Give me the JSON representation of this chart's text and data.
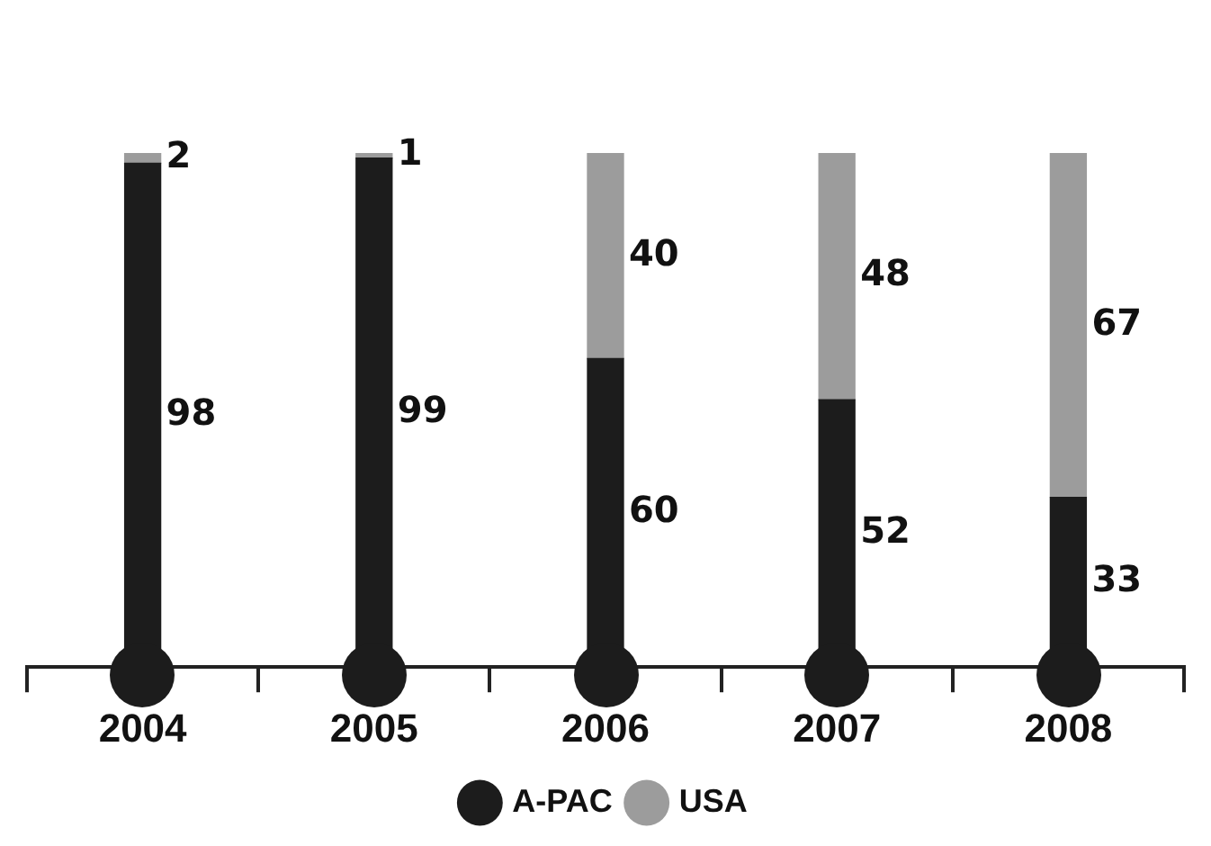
{
  "chart_data": {
    "type": "bar",
    "stacked": true,
    "categories": [
      "2004",
      "2005",
      "2006",
      "2007",
      "2008"
    ],
    "series": [
      {
        "name": "A-PAC",
        "color": "#1c1c1c",
        "values": [
          98,
          99,
          60,
          52,
          33
        ]
      },
      {
        "name": "USA",
        "color": "#9c9c9c",
        "values": [
          2,
          1,
          40,
          48,
          67
        ]
      }
    ],
    "data_labels": true,
    "legend": "bottom",
    "grid": false
  }
}
